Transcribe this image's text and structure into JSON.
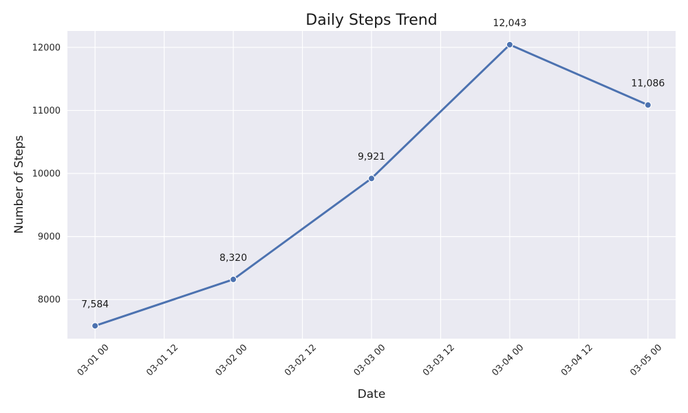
{
  "chart_data": {
    "type": "line",
    "title": "Daily Steps Trend",
    "xlabel": "Date",
    "ylabel": "Number of Steps",
    "x": [
      "2023-03-01",
      "2023-03-02",
      "2023-03-03",
      "2023-03-04",
      "2023-03-05"
    ],
    "values": [
      7584,
      8320,
      9921,
      12043,
      11086
    ],
    "data_labels": [
      "7,584",
      "8,320",
      "9,921",
      "12,043",
      "11,086"
    ],
    "x_ticks": [
      "03-01 00",
      "03-01 12",
      "03-02 00",
      "03-02 12",
      "03-03 00",
      "03-03 12",
      "03-04 00",
      "03-04 12",
      "03-05 00"
    ],
    "y_ticks": [
      8000,
      9000,
      10000,
      11000,
      12000
    ],
    "y_tick_labels": [
      "8000",
      "9000",
      "10000",
      "11000",
      "12000"
    ],
    "ylim": [
      7380,
      12260
    ],
    "grid": true,
    "colors": {
      "line": "#4c72b0",
      "plot_background": "#eaeaf2",
      "grid": "#ffffff"
    }
  }
}
